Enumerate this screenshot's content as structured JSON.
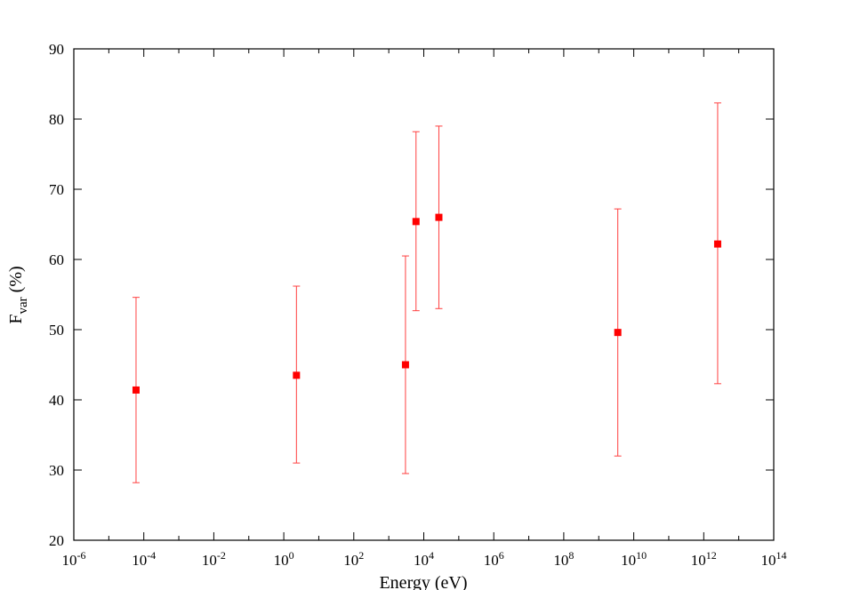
{
  "chart_data": {
    "type": "scatter",
    "title": "",
    "xlabel": "Energy (eV)",
    "ylabel_main": "F",
    "ylabel_sub": "var",
    "ylabel_unit": " (%)",
    "x_scale": "log",
    "xlim": [
      1e-06,
      100000000000000.0
    ],
    "ylim": [
      20,
      90
    ],
    "x_ticks": [
      {
        "value": 1e-06,
        "base": "10",
        "exp": "-6"
      },
      {
        "value": 0.0001,
        "base": "10",
        "exp": "-4"
      },
      {
        "value": 0.01,
        "base": "10",
        "exp": "-2"
      },
      {
        "value": 1.0,
        "base": "10",
        "exp": "0"
      },
      {
        "value": 100.0,
        "base": "10",
        "exp": "2"
      },
      {
        "value": 10000.0,
        "base": "10",
        "exp": "4"
      },
      {
        "value": 1000000.0,
        "base": "10",
        "exp": "6"
      },
      {
        "value": 100000000.0,
        "base": "10",
        "exp": "8"
      },
      {
        "value": 10000000000.0,
        "base": "10",
        "exp": "10"
      },
      {
        "value": 1000000000000.0,
        "base": "10",
        "exp": "12"
      },
      {
        "value": 100000000000000.0,
        "base": "10",
        "exp": "14"
      }
    ],
    "y_ticks": [
      "20",
      "30",
      "40",
      "50",
      "60",
      "70",
      "80",
      "90"
    ],
    "grid": false,
    "legend": "none",
    "marker_color": "#ff0000",
    "errorbar_color": "#ff4040",
    "series": [
      {
        "points": [
          {
            "x": 6e-05,
            "y": 41.4,
            "ylow": 28.2,
            "yhigh": 54.6
          },
          {
            "x": 2.3,
            "y": 43.5,
            "ylow": 31.0,
            "yhigh": 56.2
          },
          {
            "x": 3000,
            "y": 45.0,
            "ylow": 29.5,
            "yhigh": 60.5
          },
          {
            "x": 6000,
            "y": 65.4,
            "ylow": 52.7,
            "yhigh": 78.2
          },
          {
            "x": 27000,
            "y": 66.0,
            "ylow": 53.0,
            "yhigh": 79.0
          },
          {
            "x": 3500000000.0,
            "y": 49.6,
            "ylow": 32.0,
            "yhigh": 67.2
          },
          {
            "x": 2500000000000.0,
            "y": 62.2,
            "ylow": 42.3,
            "yhigh": 82.3
          }
        ]
      }
    ]
  }
}
